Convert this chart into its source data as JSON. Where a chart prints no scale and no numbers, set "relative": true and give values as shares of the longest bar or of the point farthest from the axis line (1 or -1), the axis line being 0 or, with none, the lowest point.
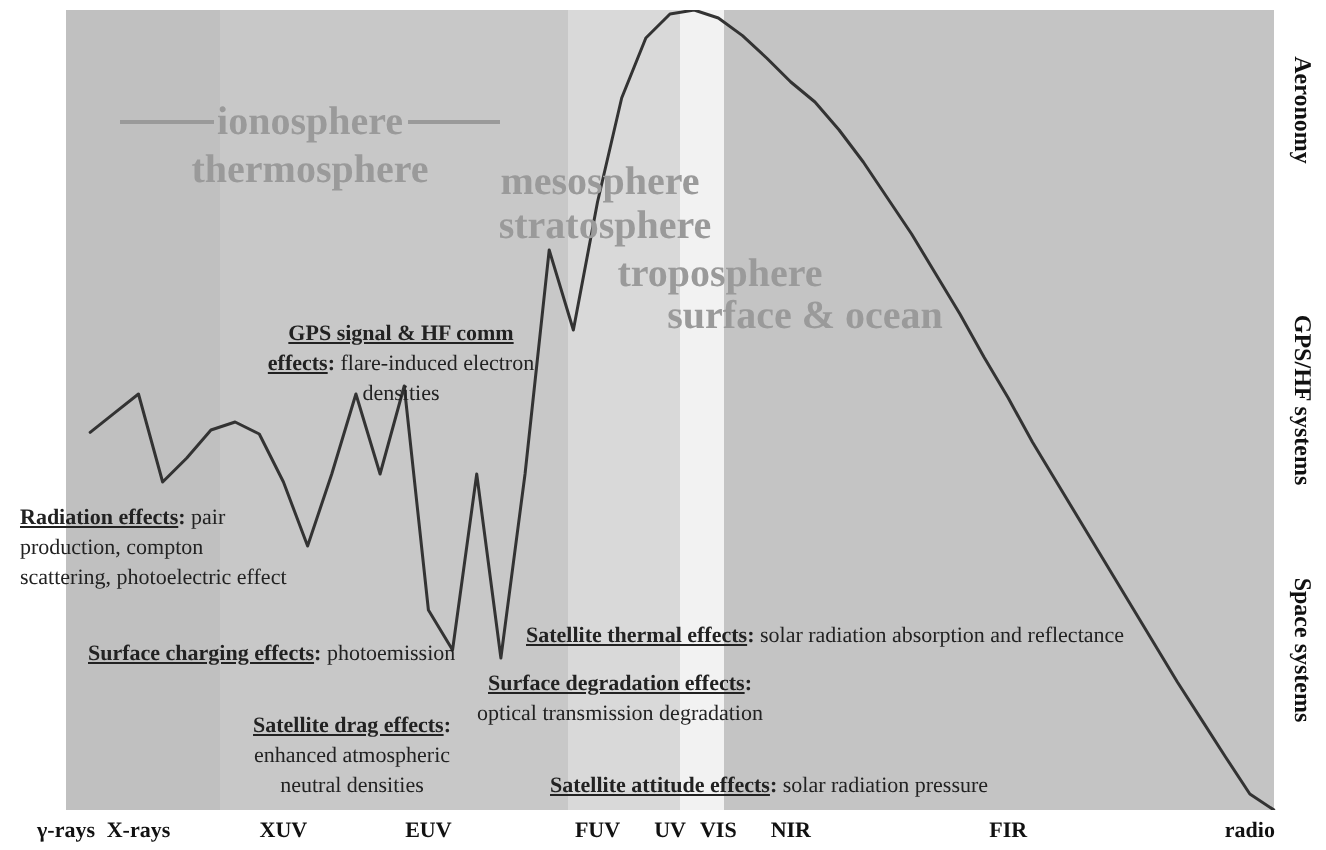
{
  "chart_data": {
    "type": "line",
    "relative": true,
    "marker": "none",
    "categories": [
      "γ-rays",
      null,
      null,
      "X-rays",
      null,
      null,
      null,
      null,
      null,
      "XUV",
      null,
      null,
      null,
      null,
      null,
      "EUV",
      null,
      null,
      null,
      null,
      null,
      null,
      "FUV",
      null,
      null,
      "UV",
      null,
      "VIS",
      null,
      null,
      "NIR",
      null,
      null,
      null,
      null,
      null,
      null,
      null,
      null,
      "FIR",
      null,
      null,
      null,
      null,
      null,
      null,
      null,
      null,
      null,
      "radio",
      null
    ],
    "series": [
      {
        "color": "#333333",
        "values": [
          null,
          0.472,
          0.496,
          0.52,
          0.41,
          0.44,
          0.475,
          0.485,
          0.47,
          0.41,
          0.33,
          0.42,
          0.52,
          0.42,
          0.53,
          0.25,
          0.2,
          0.42,
          0.19,
          0.42,
          0.7,
          0.6,
          0.76,
          0.89,
          0.965,
          0.995,
          1,
          0.99,
          0.968,
          0.94,
          0.91,
          0.885,
          0.85,
          0.81,
          0.765,
          0.72,
          0.67,
          0.62,
          0.566,
          0.515,
          0.46,
          0.41,
          0.36,
          0.31,
          0.26,
          0.21,
          0.16,
          0.113,
          0.066,
          0.02,
          0
        ]
      }
    ],
    "annotations": [
      "ionosphere",
      "thermosphere",
      "mesosphere",
      "stratosphere",
      "troposphere",
      "surface & ocean",
      "GPS signal  & HF comm effects: flare-induced electron densities",
      "Radiation effects: pair production, compton scattering, photoelectric effect",
      "Surface charging effects: photoemission",
      "Satellite thermal effects: solar radiation absorption and reflectance",
      "Surface degradation effects: optical transmission degradation",
      "Satellite drag effects: enhanced atmospheric neutral densities",
      "Satellite attitude effects: solar radiation pressure",
      "Aeronomy",
      "GPS/HF systems",
      "Space systems"
    ]
  }
}
